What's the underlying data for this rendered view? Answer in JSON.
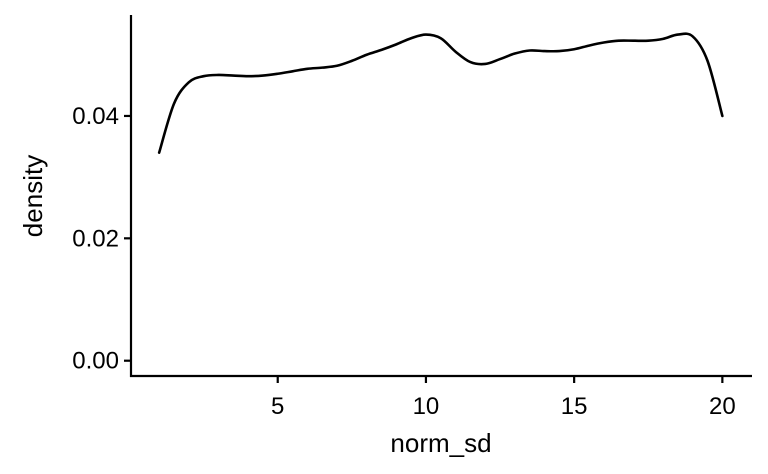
{
  "chart_data": {
    "type": "line",
    "xlabel": "norm_sd",
    "ylabel": "density",
    "xlim": [
      0.05,
      21.0
    ],
    "ylim": [
      -0.0025,
      0.0565
    ],
    "x_ticks": [
      5,
      10,
      15,
      20
    ],
    "x_tick_labels": [
      "5",
      "10",
      "15",
      "20"
    ],
    "y_ticks": [
      0.0,
      0.02,
      0.04
    ],
    "y_tick_labels": [
      "0.00",
      "0.02",
      "0.04"
    ],
    "grid": false,
    "legend": "none",
    "line_color": "#000000",
    "series": [
      {
        "x": [
          1.0,
          1.5,
          2.0,
          2.5,
          3.0,
          3.5,
          4.0,
          4.5,
          5.0,
          5.5,
          6.0,
          6.5,
          7.0,
          7.5,
          8.0,
          8.5,
          9.0,
          9.5,
          10.0,
          10.5,
          11.0,
          11.5,
          12.0,
          12.5,
          13.0,
          13.5,
          14.0,
          14.5,
          15.0,
          15.5,
          16.0,
          16.5,
          17.0,
          17.5,
          18.0,
          18.5,
          19.0,
          19.5,
          20.0
        ],
        "y": [
          0.034,
          0.042,
          0.0455,
          0.0465,
          0.0467,
          0.0466,
          0.0465,
          0.0466,
          0.0469,
          0.0473,
          0.0477,
          0.0479,
          0.0482,
          0.049,
          0.05,
          0.0508,
          0.0517,
          0.0527,
          0.0533,
          0.0527,
          0.0505,
          0.0488,
          0.0485,
          0.0493,
          0.0502,
          0.0507,
          0.0506,
          0.0506,
          0.0509,
          0.0515,
          0.052,
          0.0523,
          0.0523,
          0.0523,
          0.0526,
          0.0533,
          0.053,
          0.049,
          0.04
        ]
      }
    ]
  }
}
